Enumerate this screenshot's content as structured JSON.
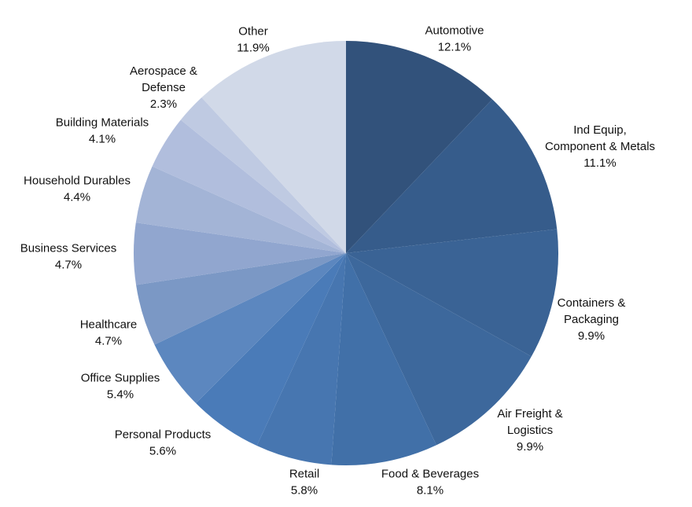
{
  "chart_data": {
    "type": "pie",
    "title": "",
    "start_angle_deg": 0,
    "direction": "clockwise",
    "legend": "none",
    "slices": [
      {
        "name": "Automotive",
        "lines": [
          "Automotive"
        ],
        "label": "12.1%",
        "value": 12.1,
        "color": "#32527b"
      },
      {
        "name": "Ind Equip, Component & Metals",
        "lines": [
          "Ind Equip,",
          "Component & Metals"
        ],
        "label": "11.1%",
        "value": 11.1,
        "color": "#365c8b"
      },
      {
        "name": "Containers & Packaging",
        "lines": [
          "Containers &",
          "Packaging"
        ],
        "label": "9.9%",
        "value": 9.9,
        "color": "#3a6395"
      },
      {
        "name": "Air Freight & Logistics",
        "lines": [
          "Air Freight &",
          "Logistics"
        ],
        "label": "9.9%",
        "value": 9.9,
        "color": "#3d689c"
      },
      {
        "name": "Food & Beverages",
        "lines": [
          "Food & Beverages"
        ],
        "label": "8.1%",
        "value": 8.1,
        "color": "#4170a8"
      },
      {
        "name": "Retail",
        "lines": [
          "Retail"
        ],
        "label": "5.8%",
        "value": 5.8,
        "color": "#4776b0"
      },
      {
        "name": "Personal Products",
        "lines": [
          "Personal  Products"
        ],
        "label": "5.6%",
        "value": 5.6,
        "color": "#4a7bb8"
      },
      {
        "name": "Office Supplies",
        "lines": [
          "Office Supplies"
        ],
        "label": "5.4%",
        "value": 5.4,
        "color": "#5c87bf"
      },
      {
        "name": "Healthcare",
        "lines": [
          "Healthcare"
        ],
        "label": "4.7%",
        "value": 4.7,
        "color": "#7b98c5"
      },
      {
        "name": "Business Services",
        "lines": [
          "Business Services"
        ],
        "label": "4.7%",
        "value": 4.7,
        "color": "#91a6cf"
      },
      {
        "name": "Household Durables",
        "lines": [
          "Household  Durables"
        ],
        "label": "4.4%",
        "value": 4.4,
        "color": "#a3b4d6"
      },
      {
        "name": "Building Materials",
        "lines": [
          "Building Materials"
        ],
        "label": "4.1%",
        "value": 4.1,
        "color": "#b1bedd"
      },
      {
        "name": "Aerospace & Defense",
        "lines": [
          "Aerospace &",
          "Defense"
        ],
        "label": "2.3%",
        "value": 2.3,
        "color": "#bfcae2"
      },
      {
        "name": "Other",
        "lines": [
          "Other"
        ],
        "label": "11.9%",
        "value": 11.9,
        "color": "#d1d9e8"
      }
    ]
  }
}
